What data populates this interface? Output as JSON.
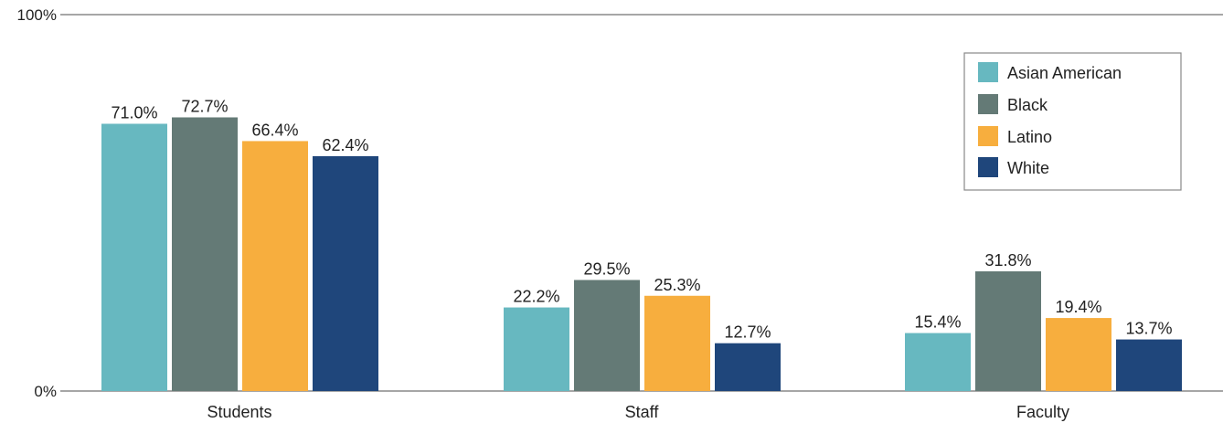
{
  "chart_data": {
    "type": "bar",
    "categories": [
      "Students",
      "Staff",
      "Faculty"
    ],
    "series": [
      {
        "name": "Asian American",
        "color": "#67b8c0",
        "values": [
          71.0,
          22.2,
          15.4
        ],
        "labels": [
          "71.0%",
          "22.2%",
          "15.4%"
        ]
      },
      {
        "name": "Black",
        "color": "#647a76",
        "values": [
          72.7,
          29.5,
          31.8
        ],
        "labels": [
          "72.7%",
          "29.5%",
          "31.8%"
        ]
      },
      {
        "name": "Latino",
        "color": "#f7ae3e",
        "values": [
          66.4,
          25.3,
          19.4
        ],
        "labels": [
          "66.4%",
          "25.3%",
          "19.4%"
        ]
      },
      {
        "name": "White",
        "color": "#1f467b",
        "values": [
          62.4,
          12.7,
          13.7
        ],
        "labels": [
          "62.4%",
          "12.7%",
          "13.7%"
        ]
      }
    ],
    "ylim": [
      0,
      100
    ],
    "yticks": [
      {
        "value": 100,
        "label": "100%"
      },
      {
        "value": 0,
        "label": "0%"
      }
    ],
    "legend_position": "top-right",
    "grid": false
  }
}
